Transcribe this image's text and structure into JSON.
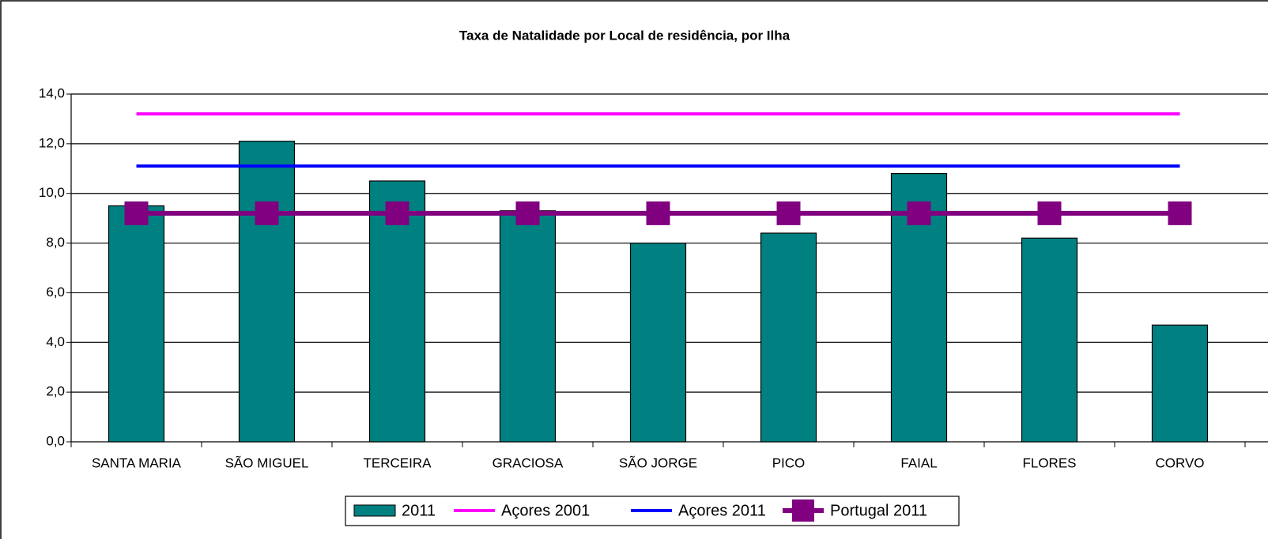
{
  "chart_data": {
    "type": "bar",
    "title": "Taxa de Natalidade por Local de residência, por Ilha",
    "categories": [
      "SANTA MARIA",
      "SÃO MIGUEL",
      "TERCEIRA",
      "GRACIOSA",
      "SÃO JORGE",
      "PICO",
      "FAIAL",
      "FLORES",
      "CORVO"
    ],
    "series": [
      {
        "name": "2011",
        "type": "bar",
        "color": "#008080",
        "values": [
          9.5,
          12.1,
          10.5,
          9.3,
          8.0,
          8.4,
          10.8,
          8.2,
          4.7
        ]
      },
      {
        "name": "Açores 2001",
        "type": "line",
        "color": "#ff00ff",
        "values": [
          13.2,
          13.2,
          13.2,
          13.2,
          13.2,
          13.2,
          13.2,
          13.2,
          13.2
        ]
      },
      {
        "name": "Açores 2011",
        "type": "line",
        "color": "#0000ff",
        "values": [
          11.1,
          11.1,
          11.1,
          11.1,
          11.1,
          11.1,
          11.1,
          11.1,
          11.1
        ]
      },
      {
        "name": "Portugal 2011",
        "type": "line",
        "marker": "square",
        "color": "#800080",
        "values": [
          9.2,
          9.2,
          9.2,
          9.2,
          9.2,
          9.2,
          9.2,
          9.2,
          9.2
        ]
      }
    ],
    "ylim": [
      0,
      14
    ],
    "yticks": [
      {
        "value": 0,
        "label": "0,0"
      },
      {
        "value": 2,
        "label": "2,0"
      },
      {
        "value": 4,
        "label": "4,0"
      },
      {
        "value": 6,
        "label": "6,0"
      },
      {
        "value": 8,
        "label": "8,0"
      },
      {
        "value": 10,
        "label": "10,0"
      },
      {
        "value": 12,
        "label": "12,0"
      },
      {
        "value": 14,
        "label": "14,0"
      }
    ],
    "grid": true,
    "legend": "bottom"
  }
}
